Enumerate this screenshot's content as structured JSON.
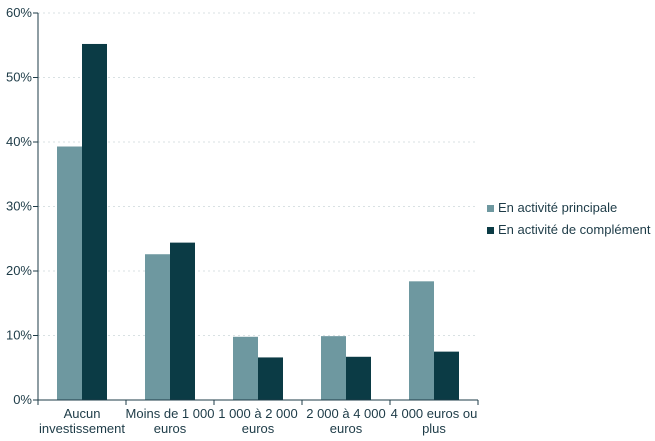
{
  "chart_data": {
    "type": "bar",
    "categories": [
      [
        "Aucun",
        "investissement"
      ],
      [
        "Moins de 1 000",
        "euros"
      ],
      [
        "1 000 à 2 000",
        "euros"
      ],
      [
        "2 000 à 4 000",
        "euros"
      ],
      [
        "4 000 euros ou",
        "plus"
      ]
    ],
    "series": [
      {
        "name": "En activité principale",
        "color": "#6e98a0",
        "values": [
          39.3,
          22.6,
          9.8,
          9.9,
          18.4
        ]
      },
      {
        "name": "En activité de complément",
        "color": "#0b3b45",
        "values": [
          55.2,
          24.4,
          6.6,
          6.7,
          7.5
        ]
      }
    ],
    "ylim": [
      0,
      60
    ],
    "yticks": [
      "0%",
      "10%",
      "20%",
      "30%",
      "40%",
      "50%",
      "60%"
    ],
    "ytick_values": [
      0,
      10,
      20,
      30,
      40,
      50,
      60
    ],
    "legend_position": "right",
    "grid": true,
    "title": "",
    "xlabel": "",
    "ylabel": ""
  }
}
